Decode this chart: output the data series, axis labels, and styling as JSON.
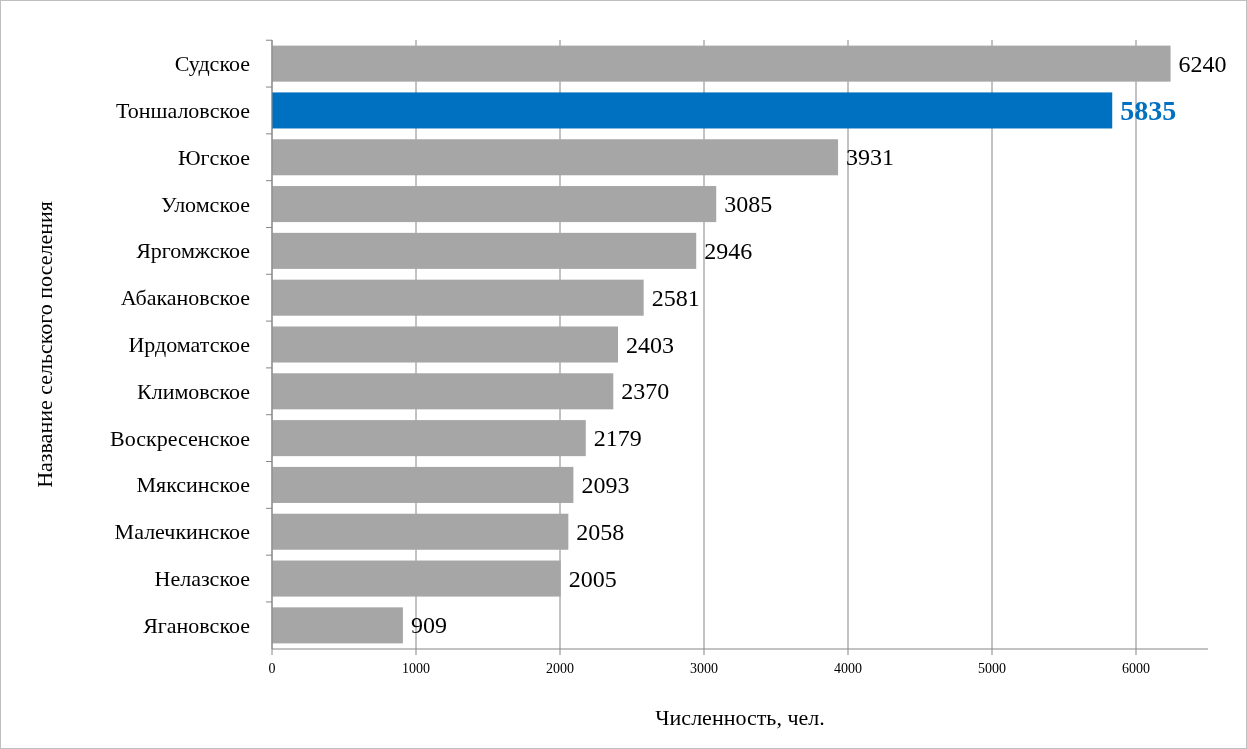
{
  "chart_data": {
    "type": "bar",
    "orientation": "horizontal",
    "xlabel": "Численность, чел.",
    "ylabel": "Название сельского поселения",
    "categories": [
      "Судское",
      "Тоншаловское",
      "Югское",
      "Уломское",
      "Яргомжское",
      "Абакановское",
      "Ирдоматское",
      "Климовское",
      "Воскресенское",
      "Мяксинское",
      "Малечкинское",
      "Нелазское",
      "Ягановское"
    ],
    "values": [
      6240,
      5835,
      3931,
      3085,
      2946,
      2581,
      2403,
      2370,
      2179,
      2093,
      2058,
      2005,
      909
    ],
    "color": "#a6a6a6",
    "colors": [
      "#a6a6a6",
      "#0070c0",
      "#a6a6a6",
      "#a6a6a6",
      "#a6a6a6",
      "#a6a6a6",
      "#a6a6a6",
      "#a6a6a6",
      "#a6a6a6",
      "#a6a6a6",
      "#a6a6a6",
      "#a6a6a6",
      "#a6a6a6"
    ],
    "xlim": [
      0,
      6500
    ],
    "xticks": [
      0,
      1000,
      2000,
      3000,
      4000,
      5000,
      6000
    ],
    "grid": "x",
    "data_labels": true
  }
}
